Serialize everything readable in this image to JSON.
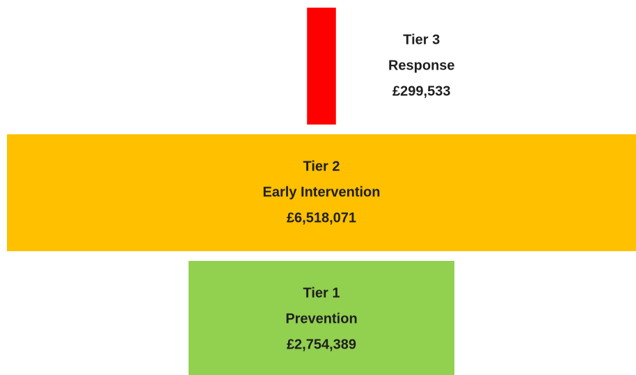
{
  "chart_data": {
    "type": "funnel",
    "categories": [
      "Tier 3",
      "Tier 2",
      "Tier 1"
    ],
    "descriptions": [
      "Response",
      "Early Intervention",
      "Prevention"
    ],
    "values": [
      299533,
      6518071,
      2754389
    ],
    "value_labels": [
      "£299,533",
      "£6,518,071",
      "£2,754,389"
    ],
    "colors": [
      "#ff0000",
      "#ffc000",
      "#92d050"
    ]
  }
}
